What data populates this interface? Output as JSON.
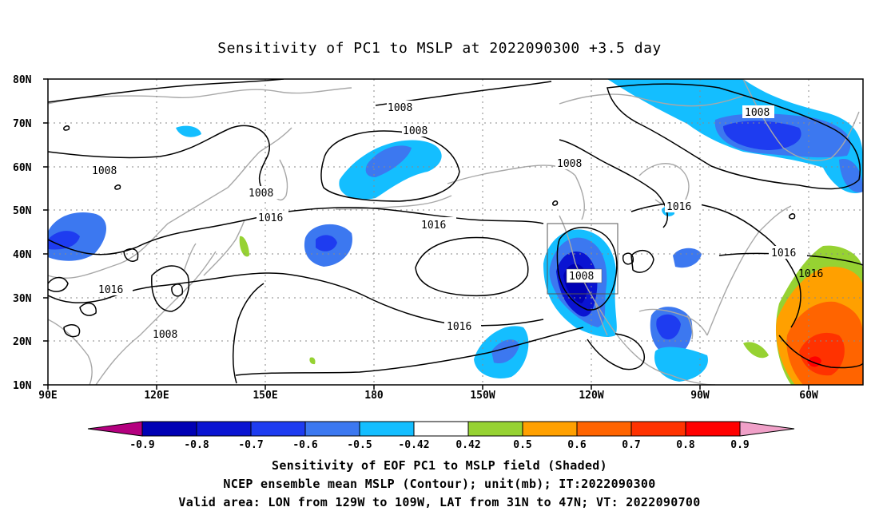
{
  "title": "Sensitivity of PC1 to MSLP at 2022090300 +3.5 day",
  "map": {
    "lat_ticks": [
      "80N",
      "70N",
      "60N",
      "50N",
      "40N",
      "30N",
      "20N",
      "10N"
    ],
    "lon_ticks": [
      "90E",
      "120E",
      "150E",
      "180",
      "150W",
      "120W",
      "90W",
      "60W"
    ],
    "lon_range": [
      "90E",
      "50W"
    ],
    "lat_range": [
      "10N",
      "80N"
    ],
    "grid": true,
    "contour_labels": [
      "1008",
      "1008",
      "1008",
      "1008",
      "1008",
      "1008",
      "1008",
      "1016",
      "1016",
      "1016",
      "1016",
      "1016",
      "1016",
      "1016"
    ],
    "valid_area_box": {
      "lon": [
        "129W",
        "109W"
      ],
      "lat": [
        "31N",
        "47N"
      ]
    }
  },
  "colorbar": {
    "labels": [
      "-0.9",
      "-0.8",
      "-0.7",
      "-0.6",
      "-0.5",
      "-0.42",
      "0.42",
      "0.5",
      "0.6",
      "0.7",
      "0.8",
      "0.9"
    ],
    "colors": [
      "#b4007f",
      "#0000b4",
      "#0a14d2",
      "#1e3cf0",
      "#3c78f0",
      "#14beff",
      "#ffffff",
      "#96d232",
      "#ffa000",
      "#ff6400",
      "#ff3200",
      "#ff0000",
      "#f0a0c8"
    ]
  },
  "footer": {
    "line1": "Sensitivity of EOF PC1 to MSLP field (Shaded)",
    "line2": "NCEP ensemble mean MSLP (Contour); unit(mb); IT:2022090300",
    "line3": "Valid area: LON from 129W to 109W, LAT from 31N to 47N; VT: 2022090700"
  }
}
